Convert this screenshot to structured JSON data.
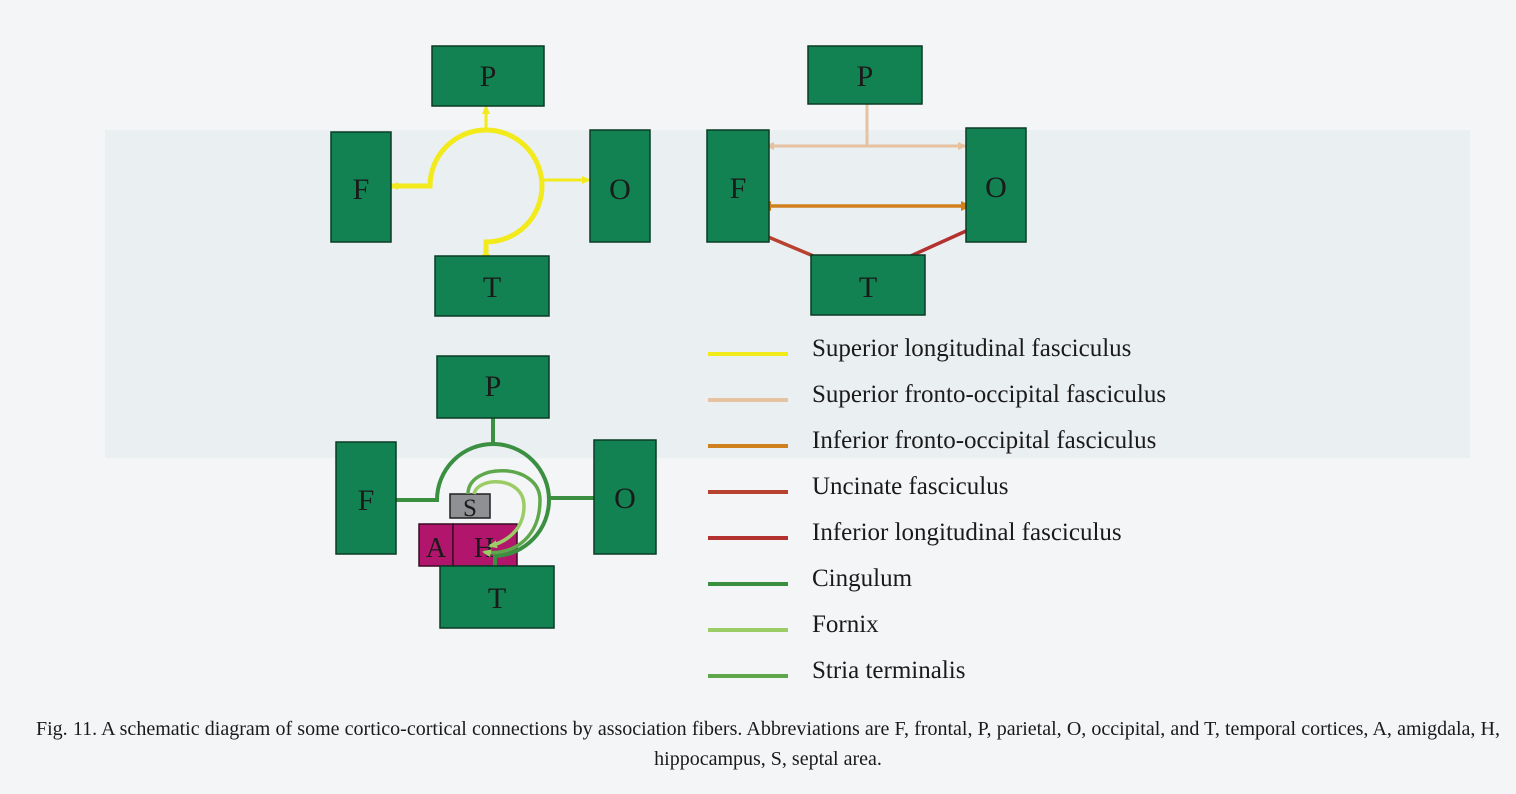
{
  "colors": {
    "box_green": "#138253",
    "box_magenta": "#b2166c",
    "box_gray": "#8e9094",
    "superior_longitudinal": "#f2ea1a",
    "superior_fronto_occipital": "#e6c2a0",
    "inferior_fronto_occipital": "#d1801e",
    "uncinate": "#b94130",
    "inferior_longitudinal": "#b33230",
    "cingulum": "#3a8f40",
    "fornix": "#9ccc66",
    "stria_terminalis": "#5ea84b"
  },
  "diagram1": {
    "labels": {
      "p": "P",
      "f": "F",
      "o": "O",
      "t": "T"
    }
  },
  "diagram2": {
    "labels": {
      "p": "P",
      "f": "F",
      "o": "O",
      "t": "T"
    }
  },
  "diagram3": {
    "labels": {
      "p": "P",
      "f": "F",
      "o": "O",
      "t": "T",
      "s": "S",
      "a": "A",
      "h": "H"
    }
  },
  "legend": [
    {
      "label": "Superior longitudinal fasciculus",
      "color": "#f2ea1a"
    },
    {
      "label": "Superior fronto-occipital fasciculus",
      "color": "#e6c2a0"
    },
    {
      "label": "Inferior fronto-occipital fasciculus",
      "color": "#d1801e"
    },
    {
      "label": "Uncinate fasciculus",
      "color": "#b94130"
    },
    {
      "label": "Inferior longitudinal fasciculus",
      "color": "#b33230"
    },
    {
      "label": "Cingulum",
      "color": "#3a8f40"
    },
    {
      "label": "Fornix",
      "color": "#9ccc66"
    },
    {
      "label": "Stria terminalis",
      "color": "#5ea84b"
    }
  ],
  "caption": "Fig. 11. A schematic diagram of some cortico-cortical connections by association fibers. Abbreviations are F, frontal, P, parietal, O, occipital, and T, temporal cortices, A, amigdala, H, hippocampus, S, septal area."
}
